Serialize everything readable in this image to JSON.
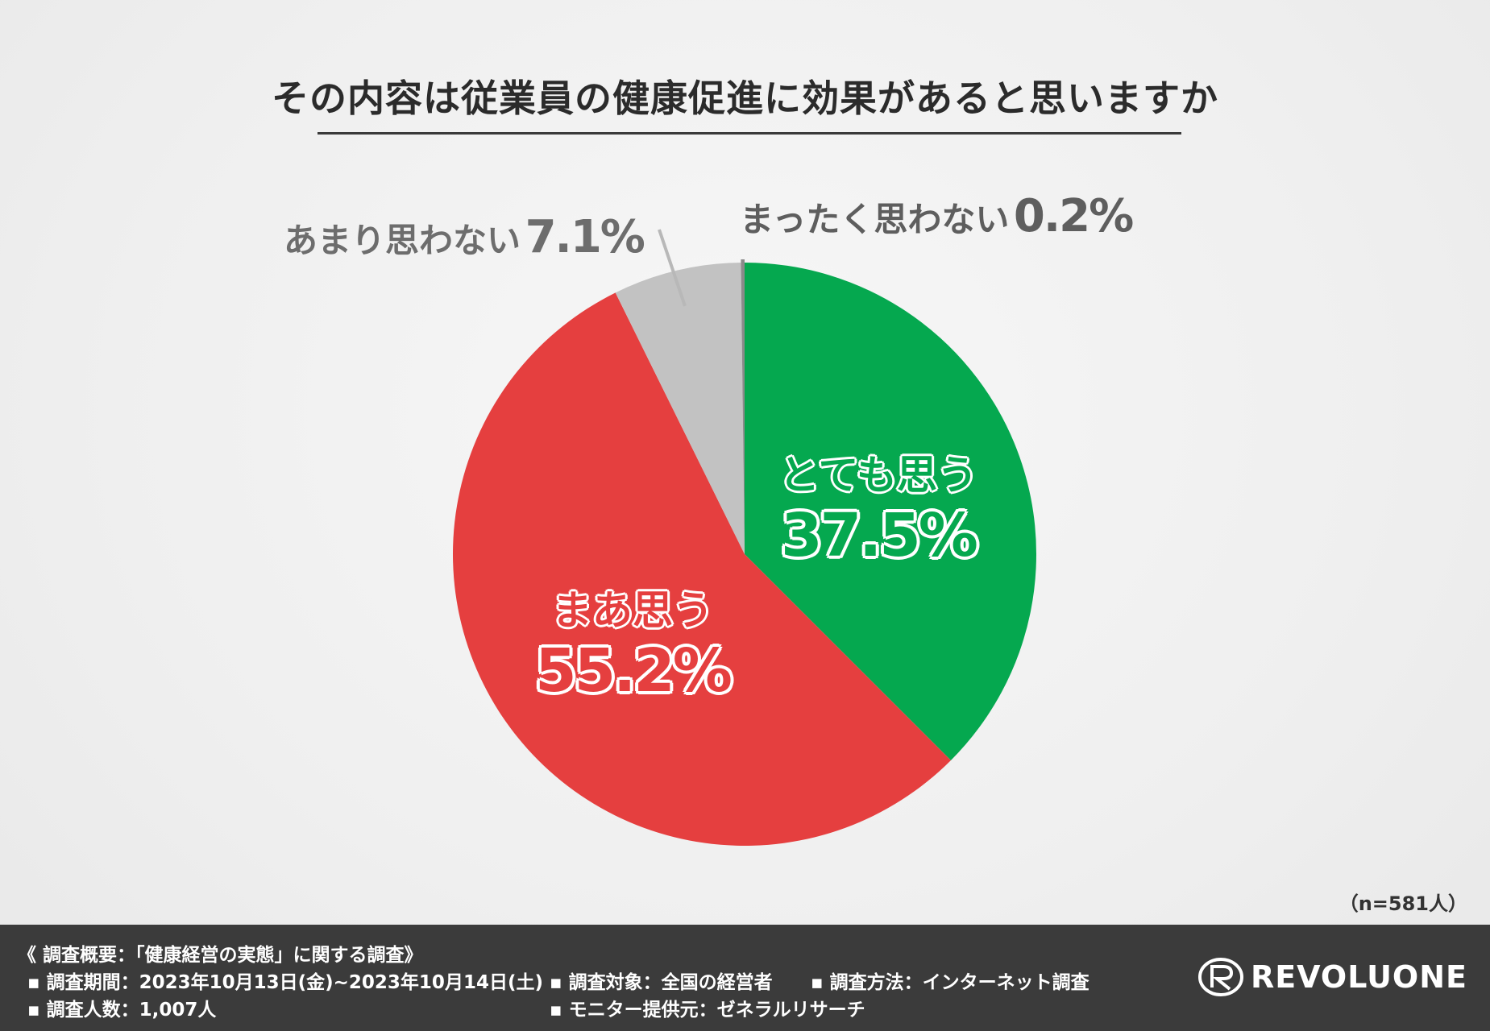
{
  "chart_data": {
    "type": "pie",
    "title": "その内容は従業員の健康促進に効果があると思いますか",
    "slices": [
      {
        "name": "とても思う",
        "value": 37.5,
        "label": "37.5%",
        "color": "#05a84f"
      },
      {
        "name": "まあ思う",
        "value": 55.2,
        "label": "55.2%",
        "color": "#e53f3f"
      },
      {
        "name": "あまり思わない",
        "value": 7.1,
        "label": "7.1%",
        "color": "#c2c2c2"
      },
      {
        "name": "まったく思わない",
        "value": 0.2,
        "label": "0.2%",
        "color": "#8a8a8a"
      }
    ],
    "sample": "（n=581人）"
  },
  "footer": {
    "heading": "《 調査概要：「健康経営の実態」に関する調査》",
    "period": "▪ 調査期間：2023年10月13日(金)~2023年10月14日(土)",
    "target": "▪ 調査対象：全国の経営者",
    "method": "▪ 調査方法：インターネット調査",
    "count": "▪ 調査人数：1,007人",
    "provider": "▪ モニター提供元：ゼネラルリサーチ",
    "brand": "REVOLUONE"
  }
}
